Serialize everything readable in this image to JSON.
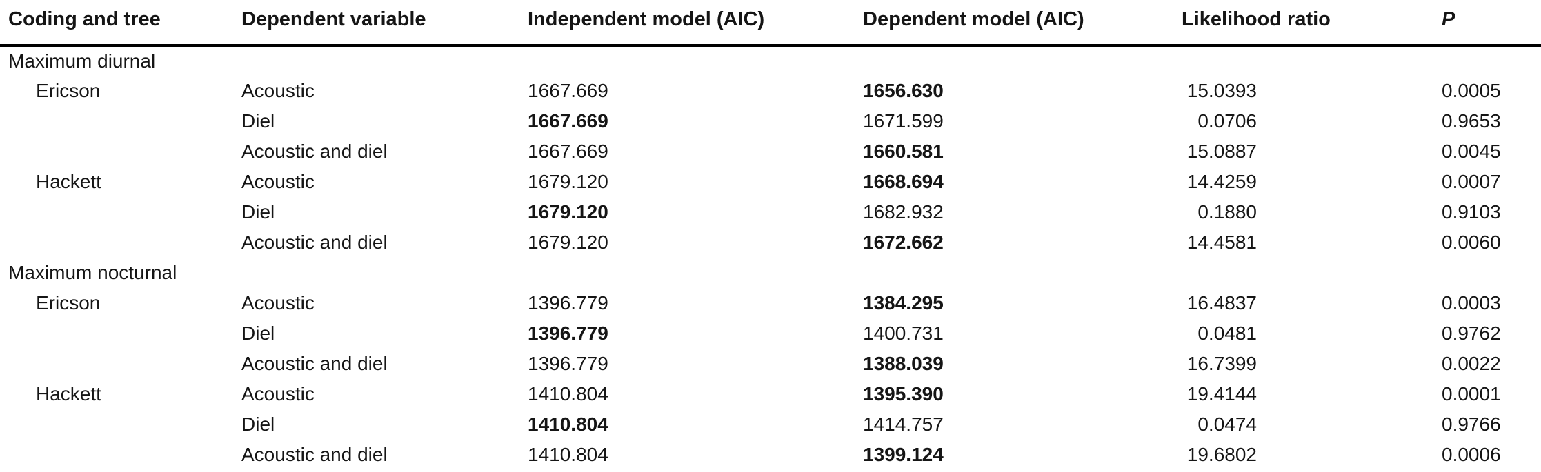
{
  "colors": {
    "background": "#ffffff",
    "text": "#151515",
    "header_rule": "#000000"
  },
  "table": {
    "columns": [
      {
        "label": "Coding and tree"
      },
      {
        "label": "Dependent variable"
      },
      {
        "label": "Independent model (AIC)"
      },
      {
        "label": "Dependent model (AIC)"
      },
      {
        "label": "Likelihood ratio"
      },
      {
        "label": "P"
      }
    ],
    "sections": [
      {
        "label": "Maximum diurnal",
        "groups": [
          {
            "tree": "Ericson",
            "rows": [
              {
                "variable": "Acoustic",
                "independent_aic": "1667.669",
                "independent_bold": false,
                "dependent_aic": "1656.630",
                "dependent_bold": true,
                "likelihood_ratio": "15.0393",
                "p": "0.0005"
              },
              {
                "variable": "Diel",
                "independent_aic": "1667.669",
                "independent_bold": true,
                "dependent_aic": "1671.599",
                "dependent_bold": false,
                "likelihood_ratio": "0.0706",
                "p": "0.9653"
              },
              {
                "variable": "Acoustic and diel",
                "independent_aic": "1667.669",
                "independent_bold": false,
                "dependent_aic": "1660.581",
                "dependent_bold": true,
                "likelihood_ratio": "15.0887",
                "p": "0.0045"
              }
            ]
          },
          {
            "tree": "Hackett",
            "rows": [
              {
                "variable": "Acoustic",
                "independent_aic": "1679.120",
                "independent_bold": false,
                "dependent_aic": "1668.694",
                "dependent_bold": true,
                "likelihood_ratio": "14.4259",
                "p": "0.0007"
              },
              {
                "variable": "Diel",
                "independent_aic": "1679.120",
                "independent_bold": true,
                "dependent_aic": "1682.932",
                "dependent_bold": false,
                "likelihood_ratio": "0.1880",
                "p": "0.9103"
              },
              {
                "variable": "Acoustic and diel",
                "independent_aic": "1679.120",
                "independent_bold": false,
                "dependent_aic": "1672.662",
                "dependent_bold": true,
                "likelihood_ratio": "14.4581",
                "p": "0.0060"
              }
            ]
          }
        ]
      },
      {
        "label": "Maximum nocturnal",
        "groups": [
          {
            "tree": "Ericson",
            "rows": [
              {
                "variable": "Acoustic",
                "independent_aic": "1396.779",
                "independent_bold": false,
                "dependent_aic": "1384.295",
                "dependent_bold": true,
                "likelihood_ratio": "16.4837",
                "p": "0.0003"
              },
              {
                "variable": "Diel",
                "independent_aic": "1396.779",
                "independent_bold": true,
                "dependent_aic": "1400.731",
                "dependent_bold": false,
                "likelihood_ratio": "0.0481",
                "p": "0.9762"
              },
              {
                "variable": "Acoustic and diel",
                "independent_aic": "1396.779",
                "independent_bold": false,
                "dependent_aic": "1388.039",
                "dependent_bold": true,
                "likelihood_ratio": "16.7399",
                "p": "0.0022"
              }
            ]
          },
          {
            "tree": "Hackett",
            "rows": [
              {
                "variable": "Acoustic",
                "independent_aic": "1410.804",
                "independent_bold": false,
                "dependent_aic": "1395.390",
                "dependent_bold": true,
                "likelihood_ratio": "19.4144",
                "p": "0.0001"
              },
              {
                "variable": "Diel",
                "independent_aic": "1410.804",
                "independent_bold": true,
                "dependent_aic": "1414.757",
                "dependent_bold": false,
                "likelihood_ratio": "0.0474",
                "p": "0.9766"
              },
              {
                "variable": "Acoustic and diel",
                "independent_aic": "1410.804",
                "independent_bold": false,
                "dependent_aic": "1399.124",
                "dependent_bold": true,
                "likelihood_ratio": "19.6802",
                "p": "0.0006"
              }
            ]
          }
        ]
      }
    ]
  }
}
